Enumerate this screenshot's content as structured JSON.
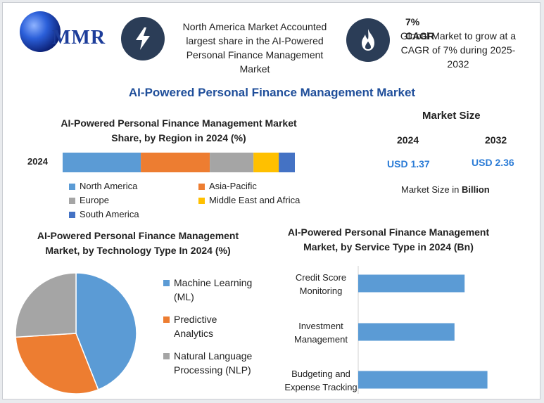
{
  "logo": {
    "text": "MMR"
  },
  "header": {
    "left_text": "North America Market Accounted largest share in the AI-Powered Personal Finance Management Market",
    "cagr_title": "7% CAGR",
    "cagr_text": "Global Market to grow at a CAGR of 7% during 2025-2032"
  },
  "main_title": "AI-Powered Personal Finance Management Market",
  "region_title": "AI-Powered Personal Finance Management Market Share, by Region in 2024 (%)",
  "market_size": {
    "title": "Market Size",
    "year1": "2024",
    "year2": "2032",
    "value1": "USD 1.37",
    "value2": "USD 2.36",
    "note_prefix": "Market Size in ",
    "note_unit": "Billion"
  },
  "tech_title": "AI-Powered Personal Finance Management Market, by Technology Type In 2024 (%)",
  "service_title": "AI-Powered Personal Finance Management Market, by Service Type in 2024 (Bn)",
  "colors": {
    "blue": "#5b9bd5",
    "orange": "#ed7d31",
    "gray": "#a5a5a5",
    "yellow": "#ffc000",
    "darkblue": "#4472c4",
    "title": "#1f4e9a"
  },
  "chart_data": [
    {
      "type": "bar",
      "orientation": "horizontal-stacked",
      "title": "AI-Powered Personal Finance Management Market Share, by Region in 2024 (%)",
      "categories": [
        "2024"
      ],
      "series": [
        {
          "name": "North America",
          "values": [
            34
          ],
          "color": "#5b9bd5"
        },
        {
          "name": "Asia-Pacific",
          "values": [
            30
          ],
          "color": "#ed7d31"
        },
        {
          "name": "Europe",
          "values": [
            19
          ],
          "color": "#a5a5a5"
        },
        {
          "name": "Middle East and Africa",
          "values": [
            11
          ],
          "color": "#ffc000"
        },
        {
          "name": "South America",
          "values": [
            7
          ],
          "color": "#4472c4"
        }
      ],
      "legend_position": "bottom"
    },
    {
      "type": "pie",
      "title": "AI-Powered Personal Finance Management Market, by Technology Type In 2024 (%)",
      "labels": [
        "Machine Learning (ML)",
        "Predictive Analytics",
        "Natural Language Processing (NLP)"
      ],
      "values": [
        44,
        30,
        26
      ],
      "colors": [
        "#5b9bd5",
        "#ed7d31",
        "#a5a5a5"
      ],
      "legend_position": "right"
    },
    {
      "type": "bar",
      "orientation": "horizontal",
      "title": "AI-Powered Personal Finance Management Market, by Service Type in 2024 (Bn)",
      "categories": [
        "Credit Score Monitoring",
        "Investment Management",
        "Budgeting and Expense Tracking"
      ],
      "values": [
        0.42,
        0.38,
        0.51
      ],
      "color": "#5b9bd5"
    }
  ]
}
